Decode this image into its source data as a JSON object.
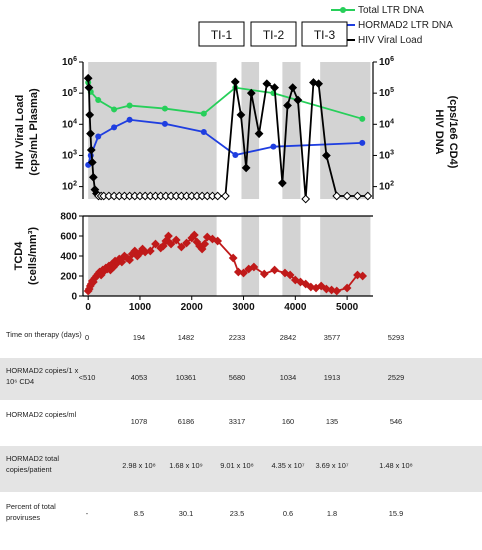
{
  "chart_data": [
    {
      "type": "line",
      "panel": "top",
      "ylabel_left": "HIV Viral Load (cps/mL Plasma)",
      "ylabel_right": "HIV DNA (cps/1e6 CD4)",
      "yscale": "log",
      "ylim": [
        40,
        1000000
      ],
      "left_ticks": [
        "10^2",
        "10^3",
        "10^4",
        "10^5",
        "10^6"
      ],
      "right_ticks": [
        "10^2",
        "10^3",
        "10^4",
        "10^5",
        "10^6"
      ],
      "xlim": [
        -100,
        5500
      ],
      "interruptions": [
        "TI-1",
        "TI-2",
        "TI-3"
      ],
      "shaded_days": [
        [
          0,
          2480
        ],
        [
          2960,
          3300
        ],
        [
          3750,
          4100
        ],
        [
          4480,
          5450
        ]
      ],
      "series": [
        {
          "name": "Total LTR DNA",
          "color": "#27cf5a",
          "marker": "circle",
          "x": [
            0,
            50,
            194,
            500,
            800,
            1482,
            2233,
            2842,
            3577,
            5293
          ],
          "y": [
            220000,
            110000,
            60000,
            30000,
            40000,
            32000,
            22000,
            150000,
            100000,
            15000
          ]
        },
        {
          "name": "HORMAD2 LTR DNA",
          "color": "#1f3ee0",
          "marker": "circle",
          "x": [
            0,
            50,
            194,
            500,
            800,
            1482,
            2233,
            2842,
            3577,
            5293
          ],
          "y": [
            500,
            1000,
            4053,
            8000,
            14000,
            10361,
            5680,
            1034,
            1913,
            2529
          ]
        },
        {
          "name": "HIV Viral Load",
          "color": "#000000",
          "marker": "diamond",
          "x": [
            0,
            15,
            30,
            45,
            60,
            80,
            100,
            130,
            160,
            200,
            250,
            300,
            400,
            500,
            600,
            700,
            800,
            900,
            1000,
            1100,
            1200,
            1300,
            1400,
            1500,
            1600,
            1700,
            1800,
            1900,
            2000,
            2100,
            2200,
            2300,
            2400,
            2500,
            2650,
            2840,
            2950,
            3050,
            3150,
            3300,
            3450,
            3600,
            3750,
            3850,
            3950,
            4050,
            4200,
            4350,
            4450,
            4600,
            4800,
            5000,
            5200,
            5400
          ],
          "y": [
            300000,
            150000,
            20000,
            5000,
            1500,
            600,
            200,
            80,
            60,
            50,
            50,
            50,
            50,
            50,
            50,
            50,
            50,
            50,
            50,
            50,
            50,
            50,
            50,
            50,
            50,
            50,
            50,
            50,
            50,
            50,
            50,
            50,
            50,
            50,
            50,
            230000,
            20000,
            400,
            100000,
            5000,
            200000,
            150000,
            130,
            40000,
            150000,
            60000,
            40,
            220000,
            200000,
            1000,
            50,
            50,
            50,
            50
          ]
        }
      ]
    },
    {
      "type": "line",
      "panel": "bottom",
      "ylabel": "TCD4 (cells/mm³)",
      "ylim": [
        0,
        800
      ],
      "yticks": [
        0,
        200,
        400,
        600,
        800
      ],
      "xlim": [
        -100,
        5500
      ],
      "xticks": [
        0,
        1000,
        2000,
        3000,
        4000,
        5000
      ],
      "series": [
        {
          "name": "TCD4",
          "color": "#c01a1a",
          "marker": "diamond",
          "x": [
            0,
            20,
            40,
            60,
            80,
            100,
            130,
            160,
            190,
            220,
            250,
            280,
            310,
            340,
            370,
            400,
            430,
            460,
            490,
            520,
            560,
            600,
            650,
            700,
            750,
            800,
            850,
            900,
            950,
            1000,
            1050,
            1100,
            1200,
            1300,
            1400,
            1450,
            1500,
            1550,
            1600,
            1700,
            1800,
            1900,
            2000,
            2050,
            2100,
            2150,
            2200,
            2250,
            2300,
            2400,
            2500,
            2800,
            2900,
            3000,
            3100,
            3200,
            3400,
            3600,
            3800,
            3900,
            4000,
            4100,
            4200,
            4300,
            4400,
            4500,
            4600,
            4700,
            4800,
            5000,
            5200,
            5300
          ],
          "y": [
            50,
            70,
            100,
            120,
            150,
            140,
            180,
            200,
            220,
            240,
            210,
            260,
            250,
            280,
            270,
            300,
            260,
            320,
            290,
            350,
            330,
            370,
            340,
            400,
            380,
            360,
            420,
            450,
            400,
            430,
            470,
            440,
            450,
            520,
            480,
            500,
            550,
            600,
            520,
            560,
            490,
            530,
            580,
            610,
            540,
            500,
            470,
            520,
            590,
            570,
            550,
            380,
            240,
            230,
            270,
            290,
            220,
            260,
            230,
            210,
            160,
            140,
            120,
            90,
            80,
            100,
            70,
            60,
            50,
            80,
            210,
            200
          ]
        }
      ]
    },
    {
      "type": "table",
      "columns": [
        "0",
        "194",
        "1482",
        "2233",
        "2842",
        "3577",
        "5293"
      ],
      "rows": [
        {
          "label": "Time on therapy (days)",
          "values": [
            "0",
            "194",
            "1482",
            "2233",
            "2842",
            "3577",
            "5293"
          ]
        },
        {
          "label": "HORMAD2 copies/1 x 10⁶ CD4",
          "values": [
            "<510",
            "4053",
            "10361",
            "5680",
            "1034",
            "1913",
            "2529"
          ]
        },
        {
          "label": "HORMAD2 copies/ml",
          "values": [
            "",
            "1078",
            "6186",
            "3317",
            "160",
            "135",
            "546"
          ]
        },
        {
          "label": "HORMAD2 total copies/patient",
          "values": [
            "",
            "2.98 x 10⁸",
            "1.68 x 10⁹",
            "9.01 x 10⁸",
            "4.35 x 10⁷",
            "3.69 x 10⁷",
            "1.48 x 10⁸"
          ]
        },
        {
          "label": "Percent of total proviruses",
          "values": [
            "-",
            "8.5",
            "30.1",
            "23.5",
            "0.6",
            "1.8",
            "15.9"
          ]
        }
      ]
    }
  ],
  "colors": {
    "shade": "#d3d3d3",
    "row_shade": "#e4e4e4"
  }
}
